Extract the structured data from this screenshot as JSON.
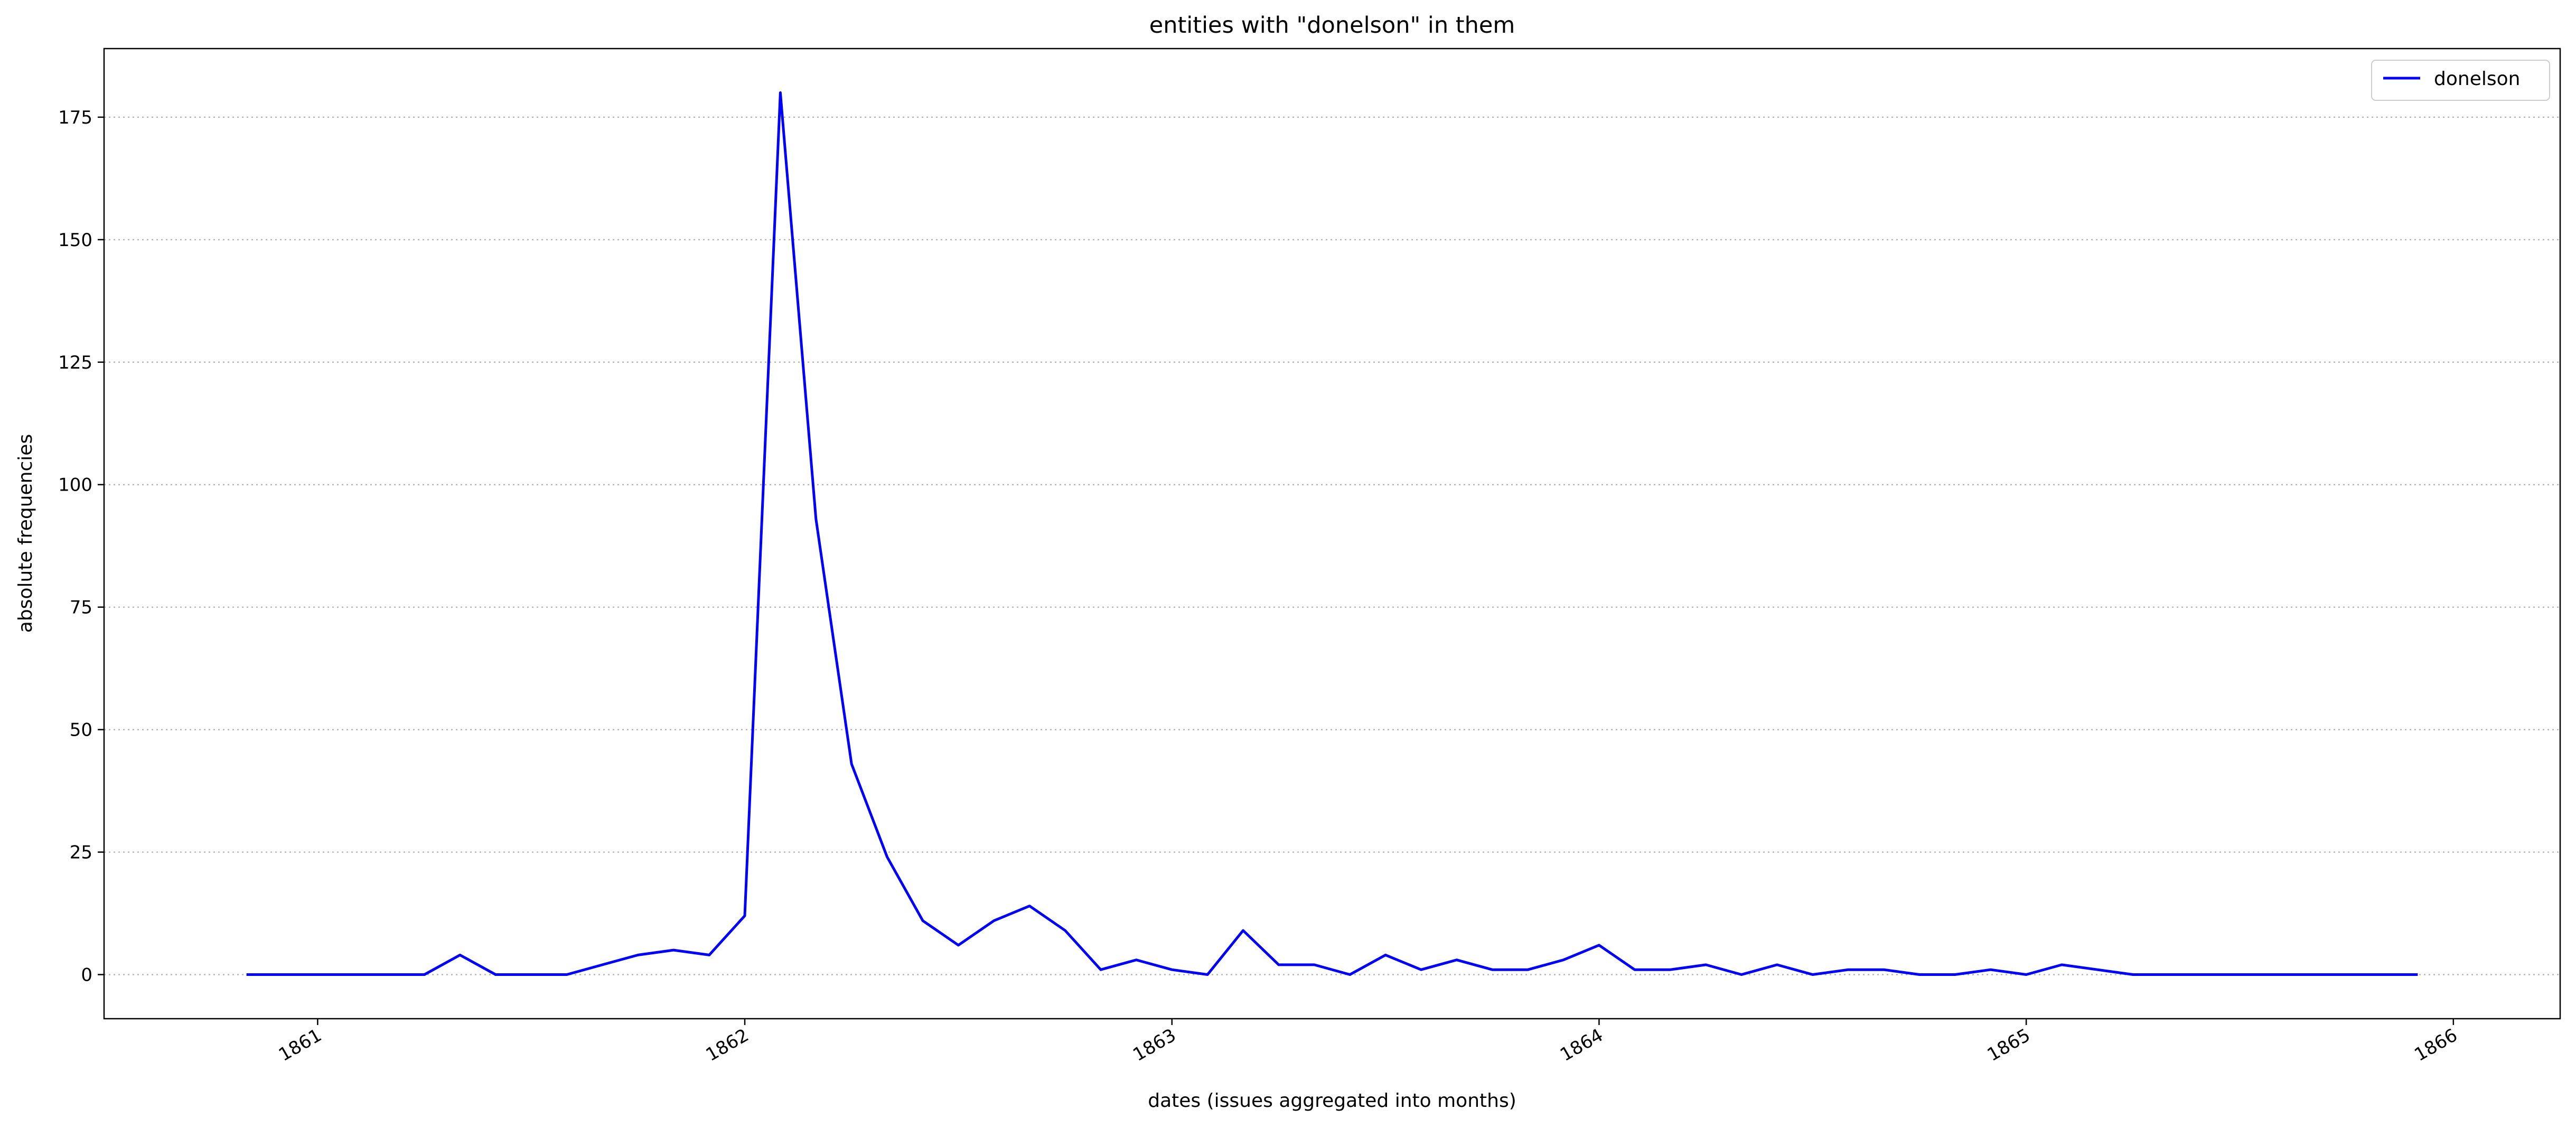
{
  "chart_data": {
    "type": "line",
    "title": "entities with \"donelson\" in them",
    "xlabel": "dates (issues aggregated into months)",
    "ylabel": "absolute frequencies",
    "x_tick_labels": [
      "1861",
      "1862",
      "1863",
      "1864",
      "1865",
      "1866"
    ],
    "y_tick_labels": [
      "0",
      "25",
      "50",
      "75",
      "100",
      "125",
      "150",
      "175"
    ],
    "y_ticks": [
      0,
      25,
      50,
      75,
      100,
      125,
      150,
      175
    ],
    "ylim": [
      -9,
      189
    ],
    "xlim": [
      "1860-07",
      "1866-04"
    ],
    "grid": "horizontal dotted",
    "legend_position": "top-right",
    "series": [
      {
        "name": "donelson",
        "color": "#0000ff",
        "points": [
          [
            "1860-11",
            0
          ],
          [
            "1860-12",
            0
          ],
          [
            "1861-01",
            0
          ],
          [
            "1861-02",
            0
          ],
          [
            "1861-03",
            0
          ],
          [
            "1861-04",
            0
          ],
          [
            "1861-05",
            4
          ],
          [
            "1861-06",
            0
          ],
          [
            "1861-07",
            0
          ],
          [
            "1861-08",
            0
          ],
          [
            "1861-09",
            2
          ],
          [
            "1861-10",
            4
          ],
          [
            "1861-11",
            5
          ],
          [
            "1861-12",
            4
          ],
          [
            "1862-01",
            12
          ],
          [
            "1862-02",
            180
          ],
          [
            "1862-03",
            93
          ],
          [
            "1862-04",
            43
          ],
          [
            "1862-05",
            24
          ],
          [
            "1862-06",
            11
          ],
          [
            "1862-07",
            6
          ],
          [
            "1862-08",
            11
          ],
          [
            "1862-09",
            14
          ],
          [
            "1862-10",
            9
          ],
          [
            "1862-11",
            1
          ],
          [
            "1862-12",
            3
          ],
          [
            "1863-01",
            1
          ],
          [
            "1863-02",
            0
          ],
          [
            "1863-03",
            9
          ],
          [
            "1863-04",
            2
          ],
          [
            "1863-05",
            2
          ],
          [
            "1863-06",
            0
          ],
          [
            "1863-07",
            4
          ],
          [
            "1863-08",
            1
          ],
          [
            "1863-09",
            3
          ],
          [
            "1863-10",
            1
          ],
          [
            "1863-11",
            1
          ],
          [
            "1863-12",
            3
          ],
          [
            "1864-01",
            6
          ],
          [
            "1864-02",
            1
          ],
          [
            "1864-03",
            1
          ],
          [
            "1864-04",
            2
          ],
          [
            "1864-05",
            0
          ],
          [
            "1864-06",
            2
          ],
          [
            "1864-07",
            0
          ],
          [
            "1864-08",
            1
          ],
          [
            "1864-09",
            1
          ],
          [
            "1864-10",
            0
          ],
          [
            "1864-11",
            0
          ],
          [
            "1864-12",
            1
          ],
          [
            "1865-01",
            0
          ],
          [
            "1865-02",
            2
          ],
          [
            "1865-03",
            1
          ],
          [
            "1865-04",
            0
          ],
          [
            "1865-05",
            0
          ],
          [
            "1865-06",
            0
          ],
          [
            "1865-07",
            0
          ],
          [
            "1865-08",
            0
          ],
          [
            "1865-09",
            0
          ],
          [
            "1865-10",
            0
          ],
          [
            "1865-11",
            0
          ],
          [
            "1865-12",
            0
          ]
        ]
      }
    ]
  }
}
